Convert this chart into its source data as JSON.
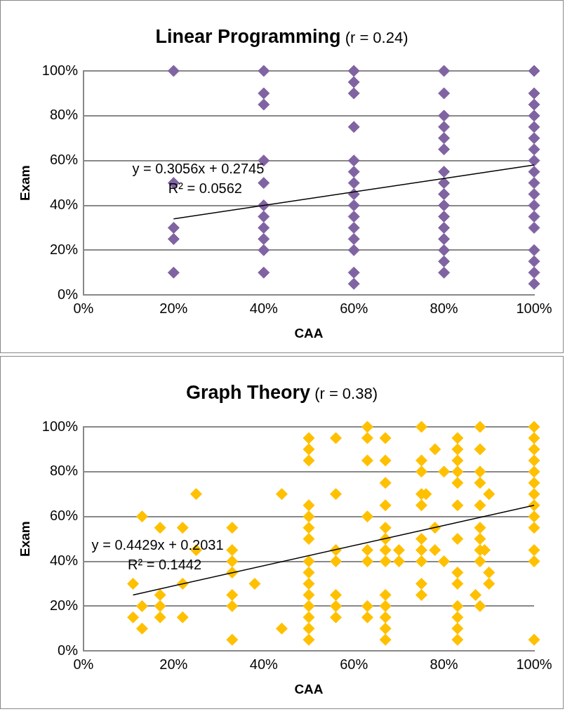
{
  "chart_data": [
    {
      "type": "scatter",
      "title": "Linear Programming",
      "subtitle": "(r = 0.24)",
      "xlabel": "CAA",
      "ylabel": "Exam",
      "grid": "y",
      "legend": false,
      "marker": "diamond",
      "xlim": [
        0,
        1
      ],
      "xticks": [
        {
          "value": 0,
          "label": "0%"
        },
        {
          "value": 0.2,
          "label": "20%"
        },
        {
          "value": 0.4,
          "label": "40%"
        },
        {
          "value": 0.6,
          "label": "60%"
        },
        {
          "value": 0.8,
          "label": "80%"
        },
        {
          "value": 1,
          "label": "100%"
        }
      ],
      "ylim": [
        0,
        1
      ],
      "yticks": [
        {
          "value": 0,
          "label": "0%"
        },
        {
          "value": 0.2,
          "label": "20%"
        },
        {
          "value": 0.4,
          "label": "40%"
        },
        {
          "value": 0.6,
          "label": "60%"
        },
        {
          "value": 0.8,
          "label": "80%"
        },
        {
          "value": 1,
          "label": "100%"
        }
      ],
      "annotations": [
        "y = 0.3056x + 0.2745",
        "R² = 0.0562"
      ],
      "series": [
        {
          "color": "#8064a2",
          "x": [
            0.2,
            0.2,
            0.2,
            0.2,
            0.2,
            0.4,
            0.4,
            0.4,
            0.4,
            0.4,
            0.4,
            0.4,
            0.4,
            0.4,
            0.4,
            0.4,
            0.6,
            0.6,
            0.6,
            0.6,
            0.6,
            0.6,
            0.6,
            0.6,
            0.6,
            0.6,
            0.6,
            0.6,
            0.6,
            0.6,
            0.6,
            0.8,
            0.8,
            0.8,
            0.8,
            0.8,
            0.8,
            0.8,
            0.8,
            0.8,
            0.8,
            0.8,
            0.8,
            0.8,
            0.8,
            0.8,
            0.8,
            1,
            1,
            1,
            1,
            1,
            1,
            1,
            1,
            1,
            1,
            1,
            1,
            1,
            1,
            1,
            1,
            1,
            1
          ],
          "values": [
            1,
            0.5,
            0.3,
            0.25,
            0.1,
            1,
            0.9,
            0.85,
            0.6,
            0.5,
            0.4,
            0.35,
            0.3,
            0.25,
            0.2,
            0.1,
            1,
            0.95,
            0.9,
            0.75,
            0.6,
            0.55,
            0.5,
            0.45,
            0.4,
            0.35,
            0.3,
            0.25,
            0.2,
            0.1,
            0.05,
            1,
            0.9,
            0.8,
            0.75,
            0.7,
            0.65,
            0.55,
            0.5,
            0.45,
            0.4,
            0.35,
            0.3,
            0.25,
            0.2,
            0.15,
            0.1,
            1,
            0.9,
            0.85,
            0.8,
            0.75,
            0.7,
            0.65,
            0.6,
            0.55,
            0.5,
            0.45,
            0.4,
            0.35,
            0.3,
            0.2,
            0.15,
            0.1,
            0.05
          ]
        },
        {
          "type": "line",
          "color": "#000000",
          "marker": "none",
          "x": [
            0.2,
            1
          ],
          "values": [
            0.34,
            0.58
          ]
        }
      ]
    },
    {
      "type": "scatter",
      "title": "Graph Theory",
      "subtitle": "(r = 0.38)",
      "xlabel": "CAA",
      "ylabel": "Exam",
      "grid": "y",
      "legend": false,
      "marker": "diamond",
      "xlim": [
        0,
        1
      ],
      "xticks": [
        {
          "value": 0,
          "label": "0%"
        },
        {
          "value": 0.2,
          "label": "20%"
        },
        {
          "value": 0.4,
          "label": "40%"
        },
        {
          "value": 0.6,
          "label": "60%"
        },
        {
          "value": 0.8,
          "label": "80%"
        },
        {
          "value": 1,
          "label": "100%"
        }
      ],
      "ylim": [
        0,
        1
      ],
      "yticks": [
        {
          "value": 0,
          "label": "0%"
        },
        {
          "value": 0.2,
          "label": "20%"
        },
        {
          "value": 0.4,
          "label": "40%"
        },
        {
          "value": 0.6,
          "label": "60%"
        },
        {
          "value": 0.8,
          "label": "80%"
        },
        {
          "value": 1,
          "label": "100%"
        }
      ],
      "annotations": [
        "y = 0.4429x + 0.2031",
        "R² = 0.1442"
      ],
      "series": [
        {
          "color": "#ffc000",
          "x": [
            0.13,
            0.25,
            0.17,
            0.22,
            0.33,
            0.25,
            0.33,
            0.33,
            0.33,
            0.11,
            0.22,
            0.17,
            0.13,
            0.17,
            0.33,
            0.33,
            0.11,
            0.17,
            0.22,
            0.13,
            0.33,
            0.38,
            0.44,
            0.44,
            0.5,
            0.5,
            0.5,
            0.5,
            0.5,
            0.5,
            0.5,
            0.5,
            0.5,
            0.5,
            0.5,
            0.5,
            0.5,
            0.5,
            0.5,
            0.56,
            0.56,
            0.56,
            0.56,
            0.56,
            0.56,
            0.56,
            0.63,
            0.63,
            0.63,
            0.63,
            0.63,
            0.63,
            0.63,
            0.63,
            0.67,
            0.67,
            0.67,
            0.67,
            0.67,
            0.67,
            0.67,
            0.67,
            0.67,
            0.67,
            0.67,
            0.67,
            0.67,
            0.7,
            0.7,
            0.75,
            0.75,
            0.75,
            0.75,
            0.75,
            0.75,
            0.75,
            0.75,
            0.75,
            0.75,
            0.76,
            0.78,
            0.78,
            0.78,
            0.8,
            0.8,
            0.83,
            0.83,
            0.83,
            0.83,
            0.83,
            0.83,
            0.83,
            0.83,
            0.83,
            0.83,
            0.83,
            0.83,
            0.83,
            0.88,
            0.88,
            0.88,
            0.88,
            0.88,
            0.88,
            0.88,
            0.88,
            0.88,
            0.87,
            0.88,
            0.89,
            0.9,
            0.9,
            0.9,
            1,
            1,
            1,
            1,
            1,
            1,
            1,
            1,
            1,
            1,
            1,
            1,
            1
          ],
          "values": [
            0.6,
            0.7,
            0.55,
            0.55,
            0.55,
            0.45,
            0.45,
            0.4,
            0.35,
            0.3,
            0.3,
            0.25,
            0.2,
            0.2,
            0.25,
            0.2,
            0.15,
            0.15,
            0.15,
            0.1,
            0.05,
            0.3,
            0.7,
            0.1,
            0.95,
            0.9,
            0.85,
            0.65,
            0.6,
            0.55,
            0.5,
            0.4,
            0.35,
            0.3,
            0.25,
            0.2,
            0.15,
            0.1,
            0.05,
            0.95,
            0.7,
            0.45,
            0.4,
            0.25,
            0.2,
            0.15,
            1,
            0.95,
            0.85,
            0.6,
            0.45,
            0.4,
            0.2,
            0.15,
            0.95,
            0.85,
            0.75,
            0.65,
            0.55,
            0.5,
            0.45,
            0.4,
            0.25,
            0.2,
            0.15,
            0.1,
            0.05,
            0.45,
            0.4,
            1,
            0.85,
            0.8,
            0.7,
            0.65,
            0.5,
            0.45,
            0.4,
            0.3,
            0.25,
            0.7,
            0.9,
            0.55,
            0.45,
            0.8,
            0.4,
            0.95,
            0.9,
            0.85,
            0.8,
            0.75,
            0.65,
            0.5,
            0.35,
            0.3,
            0.2,
            0.15,
            0.1,
            0.05,
            1,
            0.9,
            0.8,
            0.75,
            0.65,
            0.55,
            0.5,
            0.4,
            0.2,
            0.25,
            0.45,
            0.45,
            0.7,
            0.35,
            0.3,
            1,
            0.95,
            0.9,
            0.85,
            0.8,
            0.75,
            0.7,
            0.65,
            0.6,
            0.55,
            0.45,
            0.4,
            0.05
          ]
        },
        {
          "type": "line",
          "color": "#000000",
          "marker": "none",
          "x": [
            0.11,
            1
          ],
          "values": [
            0.25,
            0.65
          ]
        }
      ]
    }
  ]
}
